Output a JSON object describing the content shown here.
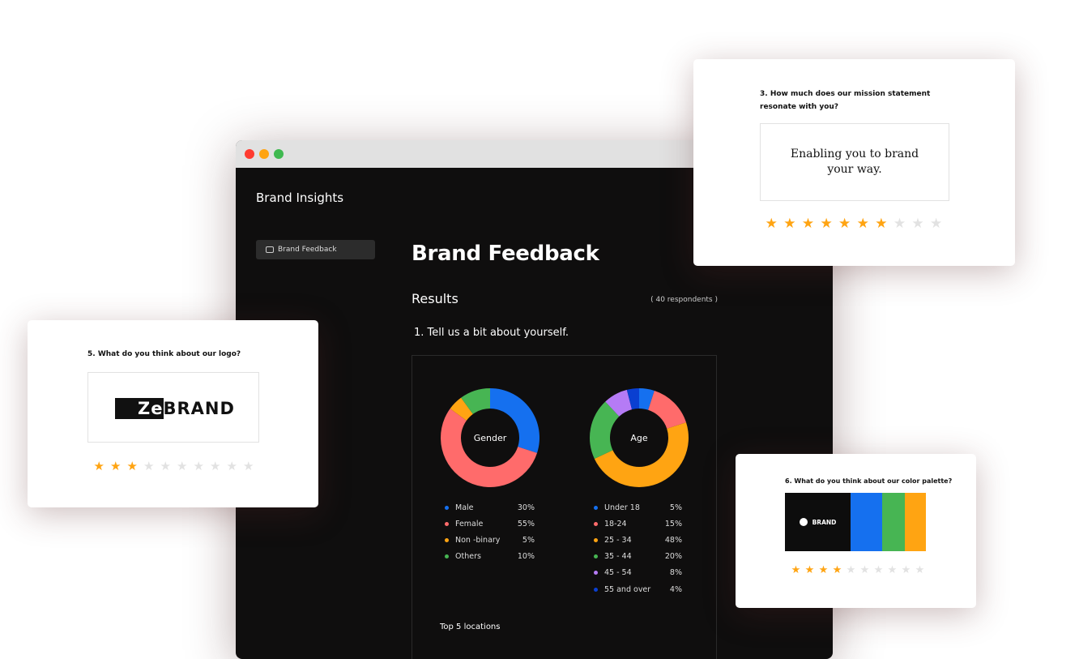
{
  "window": {
    "traffic_lights": [
      "#ff3b30",
      "#ffa412",
      "#3fb950"
    ]
  },
  "app": {
    "title": "Brand Insights"
  },
  "sidebar": {
    "items": [
      {
        "label": "Brand Feedback",
        "icon": "chat-icon"
      }
    ]
  },
  "main": {
    "title": "Brand Feedback",
    "results_label": "Results",
    "respondents": "( 40 respondents )",
    "question": "1.  Tell us a bit about yourself.",
    "top_locations_label": "Top 5 locations"
  },
  "chart_data": [
    {
      "type": "pie",
      "variant": "donut",
      "title": "Gender",
      "categories": [
        "Male",
        "Female",
        "Non -binary",
        "Others"
      ],
      "values": [
        30,
        55,
        5,
        10
      ],
      "value_labels": [
        "30%",
        "55%",
        "5%",
        "10%"
      ],
      "colors": [
        "#1570ef",
        "#ff6b6b",
        "#ffa412",
        "#47b553"
      ],
      "legend": "bottom"
    },
    {
      "type": "pie",
      "variant": "donut",
      "title": "Age",
      "categories": [
        "Under 18",
        "18-24",
        "25 - 34",
        "35 - 44",
        "45 - 54",
        "55 and over"
      ],
      "values": [
        5,
        15,
        48,
        20,
        8,
        4
      ],
      "value_labels": [
        "5%",
        "15%",
        "48%",
        "20%",
        "8%",
        "4%"
      ],
      "colors": [
        "#1570ef",
        "#ff6b6b",
        "#ffa412",
        "#47b553",
        "#b57bf5",
        "#0a3fd1"
      ],
      "legend": "bottom"
    }
  ],
  "cards": {
    "mission": {
      "question": "3. How much does our mission statement resonate with you?",
      "statement": "Enabling you to brand your way.",
      "rating": 7,
      "max": 10
    },
    "logo": {
      "question": "5. What do you think about our logo?",
      "logo_text": "ZeBRAND",
      "rating": 3,
      "max": 10
    },
    "palette": {
      "question": "6. What do you think about our color palette?",
      "brand_label": "BRAND",
      "colors": [
        "#0d0d0d",
        "#1570ef",
        "#47b553",
        "#ffa412"
      ],
      "rating": 4,
      "max": 10
    }
  },
  "colors": {
    "star_on": "#ffa412",
    "star_off": "#e2e2e2"
  }
}
